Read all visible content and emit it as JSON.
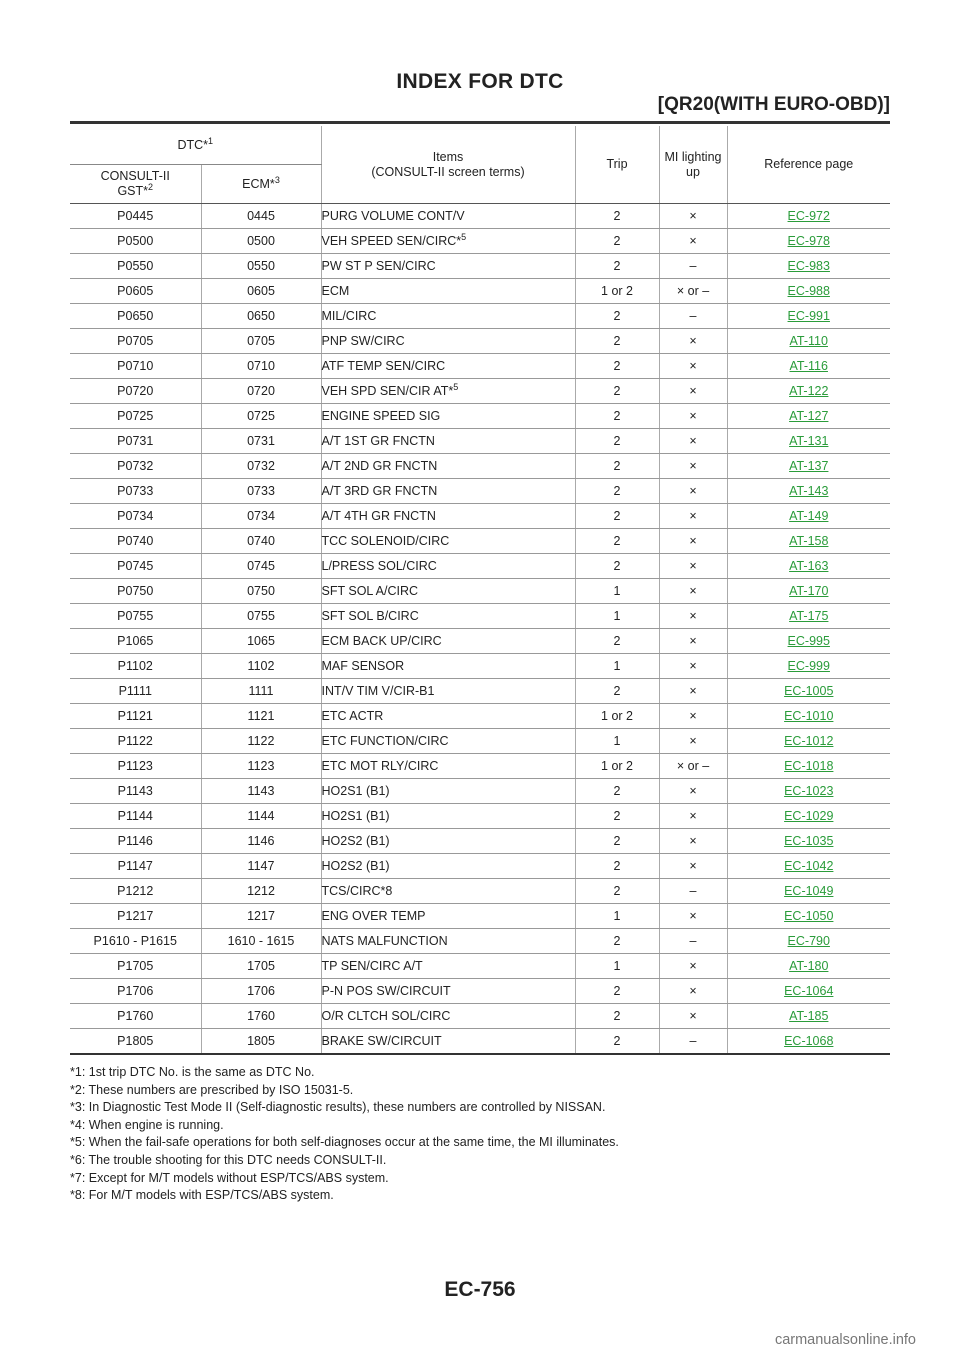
{
  "header": {
    "title": "INDEX FOR DTC",
    "section": "[QR20(WITH EURO-OBD)]"
  },
  "table": {
    "headers": {
      "dtc": "DTC*",
      "dtc_sup": "1",
      "consult_line1": "CONSULT-II",
      "consult_line2": "GST*",
      "consult_sup": "2",
      "ecm": "ECM*",
      "ecm_sup": "3",
      "items_line1": "Items",
      "items_line2": "(CONSULT-II screen terms)",
      "trip": "Trip",
      "mi_line1": "MI lighting",
      "mi_line2": "up",
      "reference": "Reference page"
    },
    "rows": [
      {
        "consult": "P0445",
        "ecm": "0445",
        "item": "PURG VOLUME CONT/V",
        "sup": "",
        "trip": "2",
        "mi": "×",
        "ref": "EC-972"
      },
      {
        "consult": "P0500",
        "ecm": "0500",
        "item": "VEH SPEED SEN/CIRC*",
        "sup": "5",
        "trip": "2",
        "mi": "×",
        "ref": "EC-978"
      },
      {
        "consult": "P0550",
        "ecm": "0550",
        "item": "PW ST P SEN/CIRC",
        "sup": "",
        "trip": "2",
        "mi": "–",
        "ref": "EC-983"
      },
      {
        "consult": "P0605",
        "ecm": "0605",
        "item": "ECM",
        "sup": "",
        "trip": "1 or 2",
        "mi": "× or –",
        "ref": "EC-988"
      },
      {
        "consult": "P0650",
        "ecm": "0650",
        "item": "MIL/CIRC",
        "sup": "",
        "trip": "2",
        "mi": "–",
        "ref": "EC-991"
      },
      {
        "consult": "P0705",
        "ecm": "0705",
        "item": "PNP SW/CIRC",
        "sup": "",
        "trip": "2",
        "mi": "×",
        "ref": "AT-110"
      },
      {
        "consult": "P0710",
        "ecm": "0710",
        "item": "ATF TEMP SEN/CIRC",
        "sup": "",
        "trip": "2",
        "mi": "×",
        "ref": "AT-116"
      },
      {
        "consult": "P0720",
        "ecm": "0720",
        "item": "VEH SPD SEN/CIR AT*",
        "sup": "5",
        "trip": "2",
        "mi": "×",
        "ref": "AT-122"
      },
      {
        "consult": "P0725",
        "ecm": "0725",
        "item": "ENGINE SPEED SIG",
        "sup": "",
        "trip": "2",
        "mi": "×",
        "ref": "AT-127"
      },
      {
        "consult": "P0731",
        "ecm": "0731",
        "item": "A/T 1ST GR FNCTN",
        "sup": "",
        "trip": "2",
        "mi": "×",
        "ref": "AT-131"
      },
      {
        "consult": "P0732",
        "ecm": "0732",
        "item": "A/T 2ND GR FNCTN",
        "sup": "",
        "trip": "2",
        "mi": "×",
        "ref": "AT-137"
      },
      {
        "consult": "P0733",
        "ecm": "0733",
        "item": "A/T 3RD GR FNCTN",
        "sup": "",
        "trip": "2",
        "mi": "×",
        "ref": "AT-143"
      },
      {
        "consult": "P0734",
        "ecm": "0734",
        "item": "A/T 4TH GR FNCTN",
        "sup": "",
        "trip": "2",
        "mi": "×",
        "ref": "AT-149"
      },
      {
        "consult": "P0740",
        "ecm": "0740",
        "item": "TCC SOLENOID/CIRC",
        "sup": "",
        "trip": "2",
        "mi": "×",
        "ref": "AT-158"
      },
      {
        "consult": "P0745",
        "ecm": "0745",
        "item": "L/PRESS SOL/CIRC",
        "sup": "",
        "trip": "2",
        "mi": "×",
        "ref": "AT-163"
      },
      {
        "consult": "P0750",
        "ecm": "0750",
        "item": "SFT SOL A/CIRC",
        "sup": "",
        "trip": "1",
        "mi": "×",
        "ref": "AT-170"
      },
      {
        "consult": "P0755",
        "ecm": "0755",
        "item": "SFT SOL B/CIRC",
        "sup": "",
        "trip": "1",
        "mi": "×",
        "ref": "AT-175"
      },
      {
        "consult": "P1065",
        "ecm": "1065",
        "item": "ECM BACK UP/CIRC",
        "sup": "",
        "trip": "2",
        "mi": "×",
        "ref": "EC-995"
      },
      {
        "consult": "P1102",
        "ecm": "1102",
        "item": "MAF SENSOR",
        "sup": "",
        "trip": "1",
        "mi": "×",
        "ref": "EC-999"
      },
      {
        "consult": "P1111",
        "ecm": "1111",
        "item": "INT/V TIM V/CIR-B1",
        "sup": "",
        "trip": "2",
        "mi": "×",
        "ref": "EC-1005"
      },
      {
        "consult": "P1121",
        "ecm": "1121",
        "item": "ETC ACTR",
        "sup": "",
        "trip": "1 or 2",
        "mi": "×",
        "ref": "EC-1010"
      },
      {
        "consult": "P1122",
        "ecm": "1122",
        "item": "ETC FUNCTION/CIRC",
        "sup": "",
        "trip": "1",
        "mi": "×",
        "ref": "EC-1012"
      },
      {
        "consult": "P1123",
        "ecm": "1123",
        "item": "ETC MOT RLY/CIRC",
        "sup": "",
        "trip": "1 or 2",
        "mi": "× or –",
        "ref": "EC-1018"
      },
      {
        "consult": "P1143",
        "ecm": "1143",
        "item": "HO2S1 (B1)",
        "sup": "",
        "trip": "2",
        "mi": "×",
        "ref": "EC-1023"
      },
      {
        "consult": "P1144",
        "ecm": "1144",
        "item": "HO2S1 (B1)",
        "sup": "",
        "trip": "2",
        "mi": "×",
        "ref": "EC-1029"
      },
      {
        "consult": "P1146",
        "ecm": "1146",
        "item": "HO2S2 (B1)",
        "sup": "",
        "trip": "2",
        "mi": "×",
        "ref": "EC-1035"
      },
      {
        "consult": "P1147",
        "ecm": "1147",
        "item": "HO2S2 (B1)",
        "sup": "",
        "trip": "2",
        "mi": "×",
        "ref": "EC-1042"
      },
      {
        "consult": "P1212",
        "ecm": "1212",
        "item": "TCS/CIRC*8",
        "sup": "",
        "trip": "2",
        "mi": "–",
        "ref": "EC-1049"
      },
      {
        "consult": "P1217",
        "ecm": "1217",
        "item": "ENG OVER TEMP",
        "sup": "",
        "trip": "1",
        "mi": "×",
        "ref": "EC-1050"
      },
      {
        "consult": "P1610 - P1615",
        "ecm": "1610 - 1615",
        "item": "NATS MALFUNCTION",
        "sup": "",
        "trip": "2",
        "mi": "–",
        "ref": "EC-790"
      },
      {
        "consult": "P1705",
        "ecm": "1705",
        "item": "TP SEN/CIRC A/T",
        "sup": "",
        "trip": "1",
        "mi": "×",
        "ref": "AT-180"
      },
      {
        "consult": "P1706",
        "ecm": "1706",
        "item": "P-N POS SW/CIRCUIT",
        "sup": "",
        "trip": "2",
        "mi": "×",
        "ref": "EC-1064"
      },
      {
        "consult": "P1760",
        "ecm": "1760",
        "item": "O/R CLTCH SOL/CIRC",
        "sup": "",
        "trip": "2",
        "mi": "×",
        "ref": "AT-185"
      },
      {
        "consult": "P1805",
        "ecm": "1805",
        "item": "BRAKE SW/CIRCUIT",
        "sup": "",
        "trip": "2",
        "mi": "–",
        "ref": "EC-1068"
      }
    ]
  },
  "notes": [
    "*1: 1st trip DTC No. is the same as DTC No.",
    "*2: These numbers are prescribed by ISO 15031-5.",
    "*3: In Diagnostic Test Mode II (Self-diagnostic results), these numbers are controlled by NISSAN.",
    "*4: When engine is running.",
    "*5: When the fail-safe operations for both self-diagnoses occur at the same time, the MI illuminates.",
    "*6: The trouble shooting for this DTC needs CONSULT-II.",
    "*7: Except for M/T models without ESP/TCS/ABS system.",
    "*8: For M/T models with ESP/TCS/ABS system."
  ],
  "footer": {
    "page_number": "EC-756",
    "watermark": "carmanualsonline.info"
  },
  "colors": {
    "link": "#2a9c3a",
    "text": "#222222"
  }
}
